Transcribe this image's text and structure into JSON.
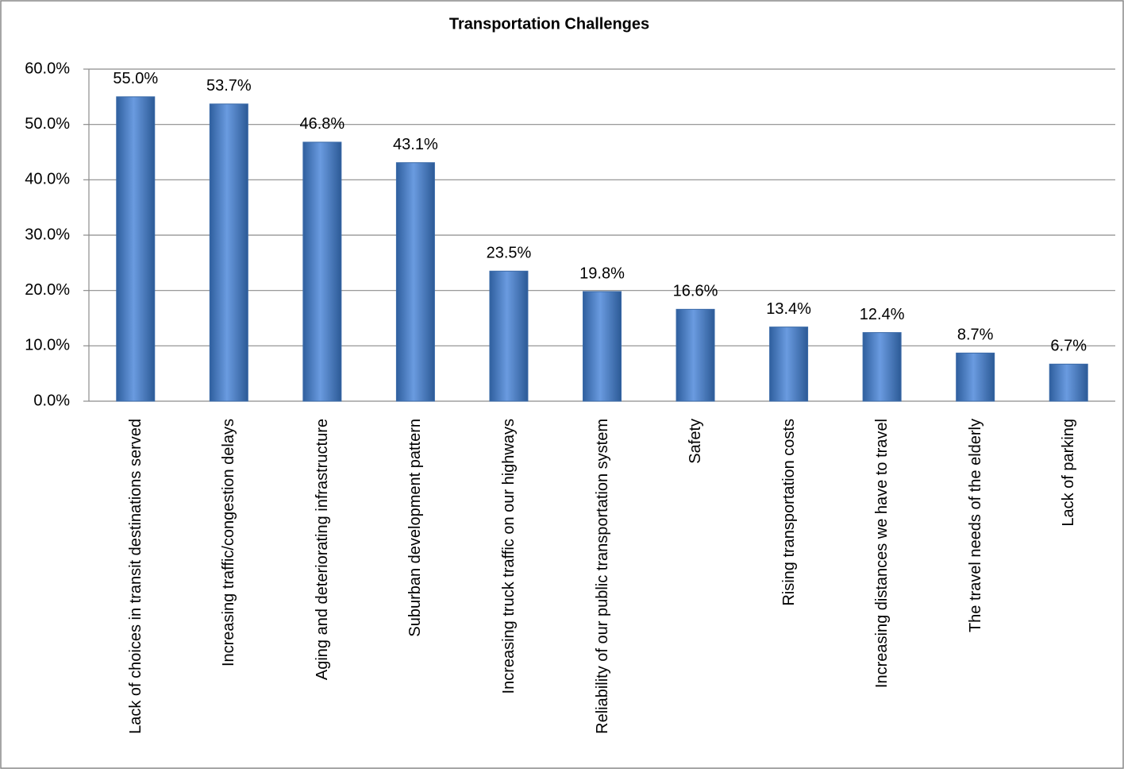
{
  "chart_data": {
    "type": "bar",
    "title": "Transportation Challenges",
    "categories": [
      "Lack of choices in transit destinations served",
      "Increasing traffic/congestion delays",
      "Aging and deteriorating infrastructure",
      "Suburban development pattern",
      "Increasing truck traffic on our highways",
      "Reliability of our public transportation system",
      "Safety",
      "Rising transportation costs",
      "Increasing distances we have to travel",
      "The travel needs of the elderly",
      "Lack of parking"
    ],
    "values": [
      55.0,
      53.7,
      46.8,
      43.1,
      23.5,
      19.8,
      16.6,
      13.4,
      12.4,
      8.7,
      6.7
    ],
    "value_labels": [
      "55.0%",
      "53.7%",
      "46.8%",
      "43.1%",
      "23.5%",
      "19.8%",
      "16.6%",
      "13.4%",
      "12.4%",
      "8.7%",
      "6.7%"
    ],
    "color": "#4f81bd",
    "ylim": [
      0,
      60
    ],
    "yticks": [
      {
        "value": 0,
        "label": "0.0%"
      },
      {
        "value": 10,
        "label": "10.0%"
      },
      {
        "value": 20,
        "label": "20.0%"
      },
      {
        "value": 30,
        "label": "30.0%"
      },
      {
        "value": 40,
        "label": "40.0%"
      },
      {
        "value": 50,
        "label": "50.0%"
      },
      {
        "value": 60,
        "label": "60.0%"
      }
    ],
    "grid": true
  }
}
